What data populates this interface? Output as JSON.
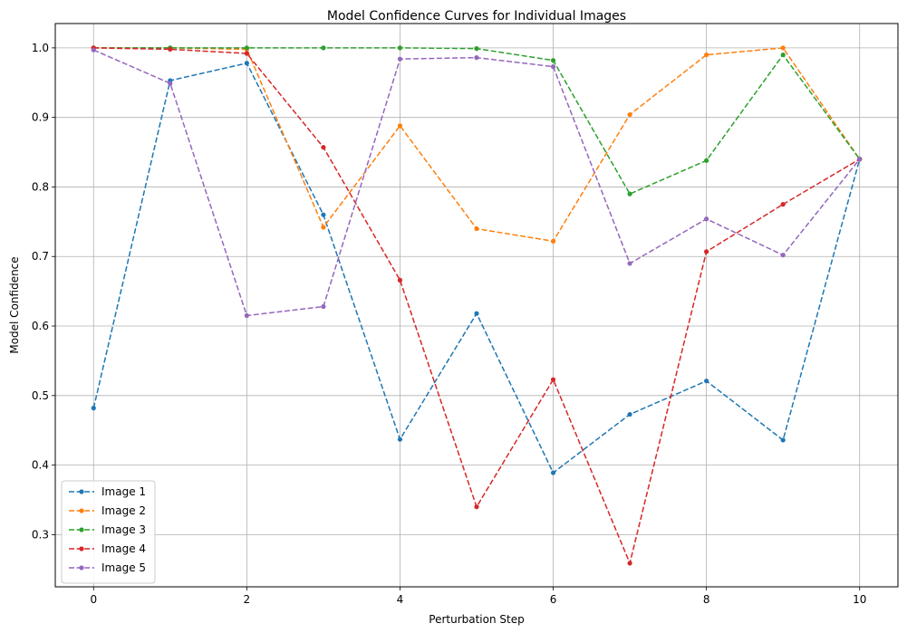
{
  "chart_data": {
    "type": "line",
    "title": "Model Confidence Curves for Individual Images",
    "xlabel": "Perturbation Step",
    "ylabel": "Model Confidence",
    "xlim": [
      -0.5,
      10.5
    ],
    "ylim": [
      0.225,
      1.035
    ],
    "xticks": [
      "0",
      "2",
      "4",
      "6",
      "8",
      "10"
    ],
    "yticks": [
      "0.3",
      "0.4",
      "0.5",
      "0.6",
      "0.7",
      "0.8",
      "0.9",
      "1.0"
    ],
    "grid": true,
    "line_style": "dashed",
    "marker": "circle",
    "legend_position": "lower-left",
    "x": [
      0,
      1,
      2,
      3,
      4,
      5,
      6,
      7,
      8,
      9,
      10
    ],
    "series": [
      {
        "name": "Image 1",
        "color": "#1f77b4",
        "values": [
          0.482,
          0.953,
          0.978,
          0.76,
          0.437,
          0.618,
          0.389,
          0.473,
          0.521,
          0.436,
          0.84
        ]
      },
      {
        "name": "Image 2",
        "color": "#ff7f0e",
        "values": [
          1.0,
          1.0,
          0.998,
          0.742,
          0.888,
          0.74,
          0.722,
          0.904,
          0.99,
          1.0,
          0.84
        ]
      },
      {
        "name": "Image 3",
        "color": "#2ca02c",
        "values": [
          1.0,
          1.0,
          1.0,
          1.0,
          1.0,
          0.999,
          0.982,
          0.79,
          0.838,
          0.99,
          0.84
        ]
      },
      {
        "name": "Image 4",
        "color": "#d62728",
        "values": [
          1.0,
          0.998,
          0.992,
          0.857,
          0.666,
          0.34,
          0.523,
          0.259,
          0.707,
          0.775,
          0.84
        ]
      },
      {
        "name": "Image 5",
        "color": "#9467bd",
        "values": [
          0.997,
          0.949,
          0.615,
          0.628,
          0.984,
          0.986,
          0.973,
          0.69,
          0.754,
          0.702,
          0.84
        ]
      }
    ]
  }
}
